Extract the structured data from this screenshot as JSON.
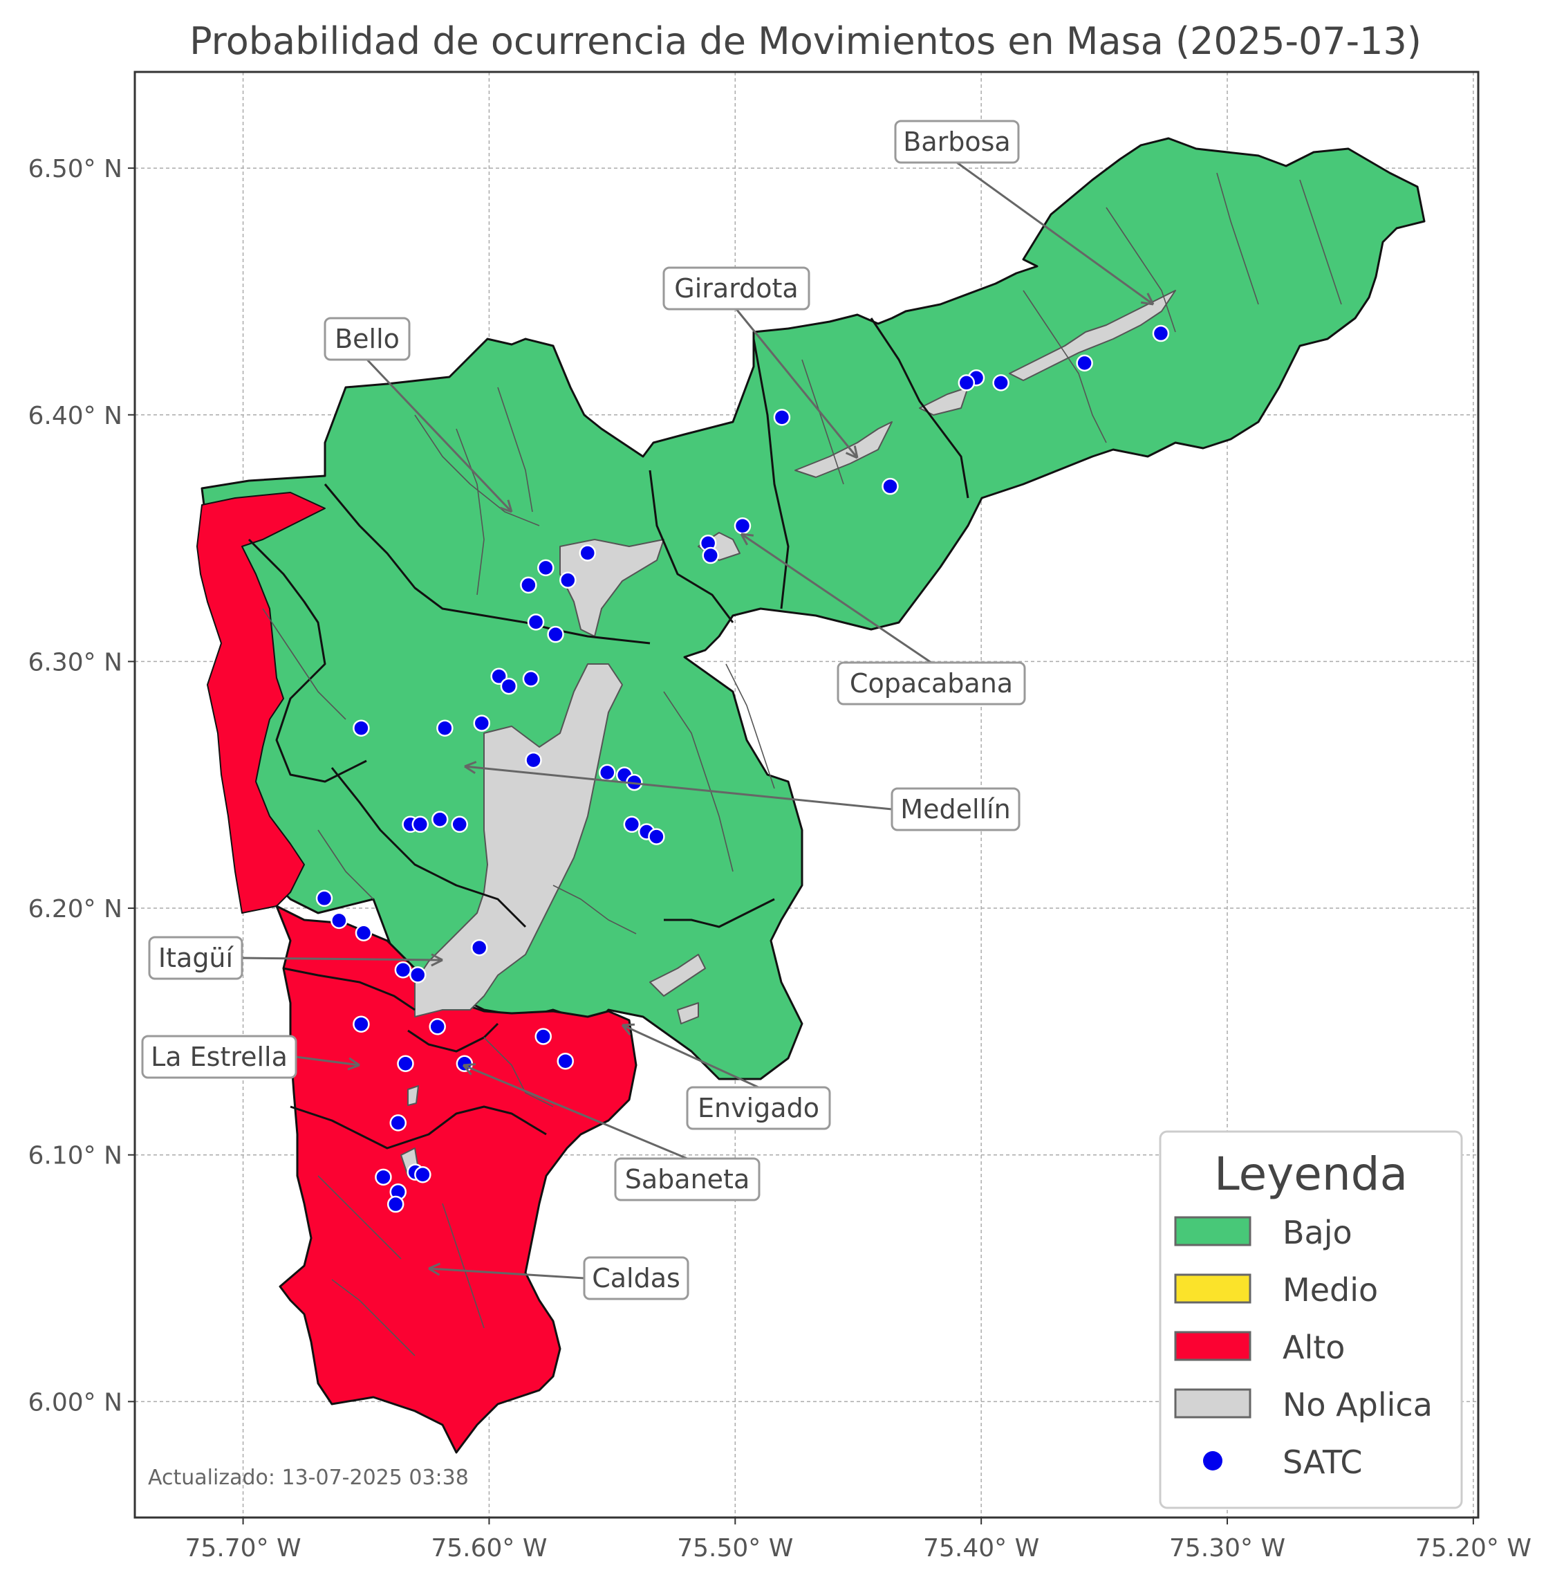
{
  "title": "Probabilidad de ocurrencia de Movimientos en Masa (2025-07-13)",
  "updated": "Actualizado: 13-07-2025 03:38",
  "axes": {
    "x_ticks": [
      {
        "value": -75.7,
        "label": "75.70° W"
      },
      {
        "value": -75.6,
        "label": "75.60° W"
      },
      {
        "value": -75.5,
        "label": "75.50° W"
      },
      {
        "value": -75.4,
        "label": "75.40° W"
      },
      {
        "value": -75.3,
        "label": "75.30° W"
      },
      {
        "value": -75.2,
        "label": "75.20° W"
      }
    ],
    "y_ticks": [
      {
        "value": 6.5,
        "label": "6.50° N"
      },
      {
        "value": 6.4,
        "label": "6.40° N"
      },
      {
        "value": 6.3,
        "label": "6.30° N"
      },
      {
        "value": 6.2,
        "label": "6.20° N"
      },
      {
        "value": 6.1,
        "label": "6.10° N"
      },
      {
        "value": 6.0,
        "label": "6.00° N"
      }
    ],
    "xlim": [
      -75.744,
      -75.198
    ],
    "ylim": [
      5.953,
      6.539
    ],
    "grid": true
  },
  "colors": {
    "bajo": "#48c878",
    "medio": "#fbe32a",
    "alto": "#fb0232",
    "no_aplica": "#d3d3d3",
    "satc": "#0000ee",
    "border": "#111111",
    "sub_border": "#555555"
  },
  "legend": {
    "title": "Leyenda",
    "items": [
      {
        "label": "Bajo",
        "kind": "patch",
        "color": "#48c878"
      },
      {
        "label": "Medio",
        "kind": "patch",
        "color": "#fbe32a"
      },
      {
        "label": "Alto",
        "kind": "patch",
        "color": "#fb0232"
      },
      {
        "label": "No Aplica",
        "kind": "patch",
        "color": "#d3d3d3"
      },
      {
        "label": "SATC",
        "kind": "dot",
        "color": "#0000ee"
      }
    ]
  },
  "municipalities": [
    {
      "name": "Barbosa",
      "risk": "Bajo"
    },
    {
      "name": "Girardota",
      "risk": "Bajo"
    },
    {
      "name": "Bello",
      "risk": "Bajo"
    },
    {
      "name": "Copacabana",
      "risk": "Bajo"
    },
    {
      "name": "Medellín",
      "risk": "Bajo"
    },
    {
      "name": "Itagüí",
      "risk": "Alto"
    },
    {
      "name": "La Estrella",
      "risk": "Alto"
    },
    {
      "name": "Envigado",
      "risk": "Alto"
    },
    {
      "name": "Sabaneta",
      "risk": "Alto"
    },
    {
      "name": "Caldas",
      "risk": "Alto"
    }
  ],
  "satc_points": [
    [
      -75.327,
      6.433
    ],
    [
      -75.358,
      6.421
    ],
    [
      -75.392,
      6.413
    ],
    [
      -75.402,
      6.415
    ],
    [
      -75.406,
      6.413
    ],
    [
      -75.481,
      6.399
    ],
    [
      -75.437,
      6.371
    ],
    [
      -75.497,
      6.355
    ],
    [
      -75.511,
      6.348
    ],
    [
      -75.51,
      6.343
    ],
    [
      -75.56,
      6.344
    ],
    [
      -75.568,
      6.333
    ],
    [
      -75.577,
      6.338
    ],
    [
      -75.584,
      6.331
    ],
    [
      -75.581,
      6.316
    ],
    [
      -75.573,
      6.311
    ],
    [
      -75.596,
      6.294
    ],
    [
      -75.592,
      6.29
    ],
    [
      -75.583,
      6.293
    ],
    [
      -75.603,
      6.275
    ],
    [
      -75.652,
      6.273
    ],
    [
      -75.618,
      6.273
    ],
    [
      -75.582,
      6.26
    ],
    [
      -75.552,
      6.255
    ],
    [
      -75.545,
      6.254
    ],
    [
      -75.541,
      6.251
    ],
    [
      -75.542,
      6.234
    ],
    [
      -75.536,
      6.231
    ],
    [
      -75.532,
      6.229
    ],
    [
      -75.632,
      6.234
    ],
    [
      -75.628,
      6.234
    ],
    [
      -75.62,
      6.236
    ],
    [
      -75.612,
      6.234
    ],
    [
      -75.667,
      6.204
    ],
    [
      -75.661,
      6.195
    ],
    [
      -75.651,
      6.19
    ],
    [
      -75.604,
      6.184
    ],
    [
      -75.635,
      6.175
    ],
    [
      -75.629,
      6.173
    ],
    [
      -75.652,
      6.153
    ],
    [
      -75.621,
      6.152
    ],
    [
      -75.578,
      6.148
    ],
    [
      -75.569,
      6.138
    ],
    [
      -75.61,
      6.137
    ],
    [
      -75.634,
      6.137
    ],
    [
      -75.637,
      6.113
    ],
    [
      -75.643,
      6.091
    ],
    [
      -75.63,
      6.093
    ],
    [
      -75.627,
      6.092
    ],
    [
      -75.637,
      6.085
    ],
    [
      -75.638,
      6.08
    ]
  ]
}
